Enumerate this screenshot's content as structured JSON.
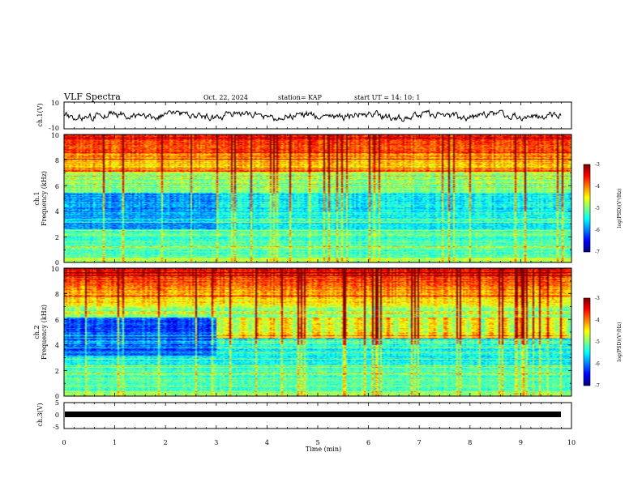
{
  "header": {
    "title": "VLF Spectra",
    "date": "Oct. 22, 2024",
    "station": "station= KAP",
    "start": "start  UT =   14: 10: 1"
  },
  "chart_data": [
    {
      "type": "line",
      "panel": "ch1-waveform",
      "ylabel": "ch.1(V)",
      "ylim": [
        -10,
        10
      ],
      "yticks": [
        "10",
        "-10"
      ],
      "xlim": [
        0,
        9.8
      ]
    },
    {
      "type": "heatmap",
      "panel": "ch1-spectrogram",
      "ylabel": "ch.1\nFrequency (kHz)",
      "ylim": [
        0,
        10
      ],
      "yticks": [
        "10",
        "8",
        "6",
        "4",
        "2",
        "0"
      ],
      "colorbar": {
        "label": "log(PSD)(V²/Hz)",
        "range": [
          -7,
          -3
        ],
        "ticks": [
          "-3",
          "-4",
          "-5",
          "-6",
          "-7"
        ]
      }
    },
    {
      "type": "heatmap",
      "panel": "ch2-spectrogram",
      "ylabel": "ch.2\nFrequency (kHz)",
      "ylim": [
        0,
        10
      ],
      "yticks": [
        "10",
        "8",
        "6",
        "4",
        "2",
        "0"
      ],
      "colorbar": {
        "label": "log(PSD)(V²/Hz)",
        "range": [
          -7,
          -3
        ],
        "ticks": [
          "-3",
          "-4",
          "-5",
          "-6",
          "-7"
        ]
      }
    },
    {
      "type": "line",
      "panel": "ch3-waveform",
      "ylabel": "ch.3(V)",
      "ylim": [
        -5,
        5
      ],
      "yticks": [
        "5",
        "0",
        "-5"
      ],
      "xlim": [
        0,
        9.8
      ]
    }
  ],
  "xaxis": {
    "label": "Time (min)",
    "range": [
      0,
      10
    ],
    "ticks": [
      "0",
      "1",
      "2",
      "3",
      "4",
      "5",
      "6",
      "7",
      "8",
      "9",
      "10"
    ]
  },
  "ylabels": {
    "ch1_top": "ch.1",
    "ch1_bottom": "Frequency (kHz)",
    "ch2_top": "ch.2",
    "ch2_bottom": "Frequency (kHz)"
  }
}
